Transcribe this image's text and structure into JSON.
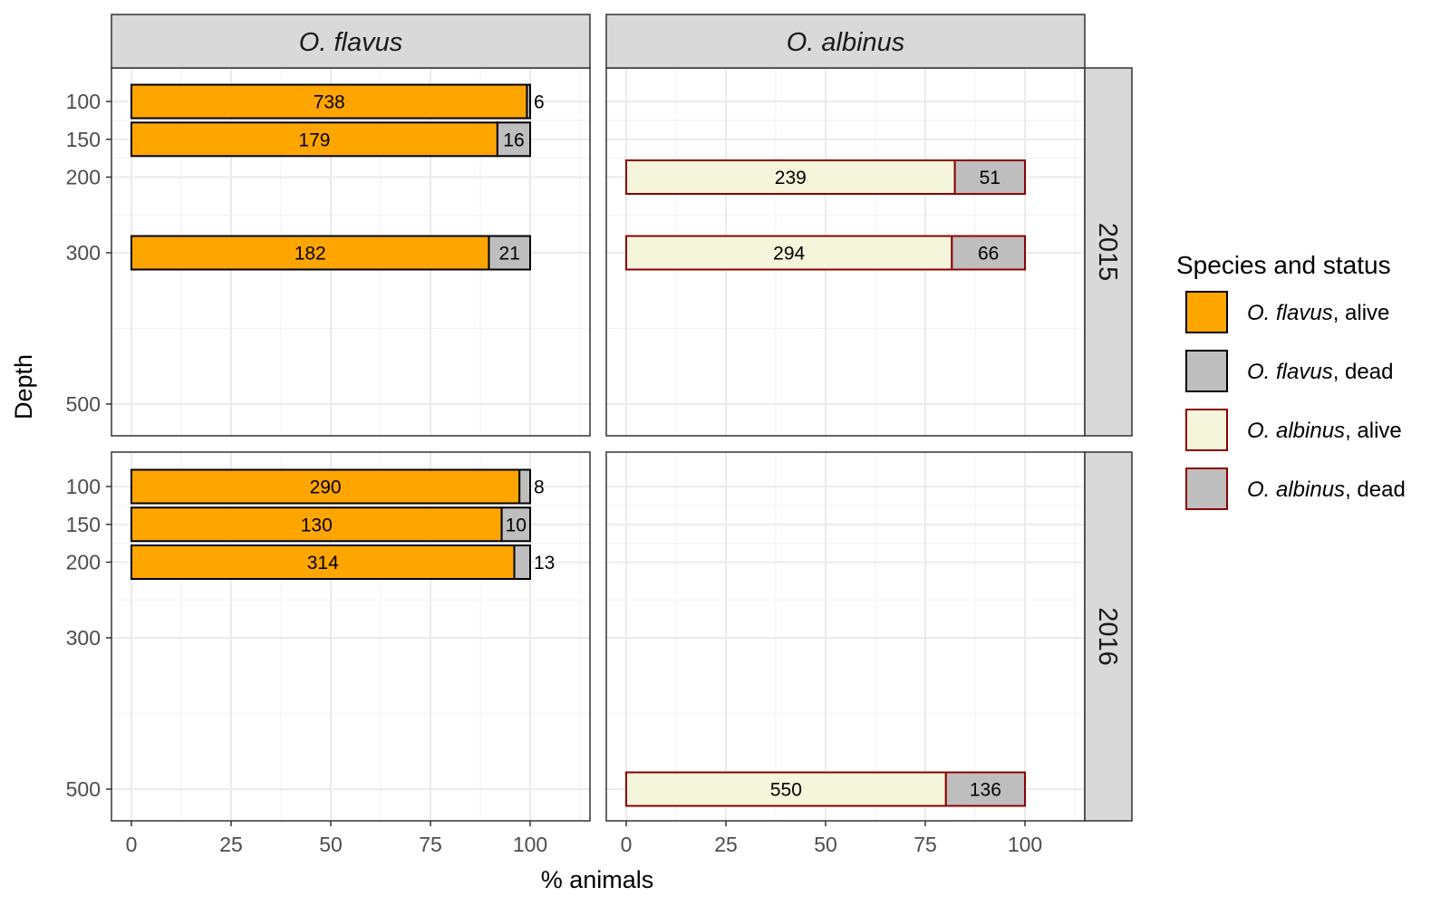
{
  "chart_data": {
    "type": "bar",
    "orientation": "horizontal",
    "stacked": true,
    "xlabel": "% animals",
    "ylabel": "Depth",
    "xlim": [
      -5,
      115
    ],
    "x_ticks": [
      0,
      25,
      50,
      75,
      100
    ],
    "y_ticks": [
      100,
      150,
      200,
      300,
      500
    ],
    "y_scale": "linear (depth), reversed, 100 at top",
    "grid": true,
    "legend": {
      "title": "Species and status",
      "placement": "right",
      "entries": [
        {
          "species": "O. flavus",
          "status": ", alive",
          "fill": "#FFA500",
          "stroke": "#000000"
        },
        {
          "species": "O. flavus",
          "status": ", dead",
          "fill": "#BEBEBE",
          "stroke": "#000000"
        },
        {
          "species": "O. albinus",
          "status": ", alive",
          "fill": "#F5F5DC",
          "stroke": "#8B0000"
        },
        {
          "species": "O. albinus",
          "status": ", dead",
          "fill": "#BEBEBE",
          "stroke": "#8B0000"
        }
      ]
    },
    "facet_columns": [
      "O. flavus",
      "O. albinus"
    ],
    "facet_rows": [
      "2015",
      "2016"
    ],
    "colors": {
      "flavus_alive": "#FFA500",
      "albinus_alive": "#F5F5DC",
      "dead": "#BEBEBE",
      "flavus_border": "#000000",
      "albinus_border": "#8B0000",
      "strip_bg": "#D9D9D9",
      "grid_major": "#EBEBEB",
      "grid_minor": "#F4F4F4"
    },
    "panels": [
      {
        "species": "O. flavus",
        "year": "2015",
        "bars": [
          {
            "depth": 100,
            "alive": 738,
            "dead": 6
          },
          {
            "depth": 150,
            "alive": 179,
            "dead": 16
          },
          {
            "depth": 300,
            "alive": 182,
            "dead": 21
          }
        ]
      },
      {
        "species": "O. albinus",
        "year": "2015",
        "bars": [
          {
            "depth": 200,
            "alive": 239,
            "dead": 51
          },
          {
            "depth": 300,
            "alive": 294,
            "dead": 66
          }
        ]
      },
      {
        "species": "O. flavus",
        "year": "2016",
        "bars": [
          {
            "depth": 100,
            "alive": 290,
            "dead": 8
          },
          {
            "depth": 150,
            "alive": 130,
            "dead": 10
          },
          {
            "depth": 200,
            "alive": 314,
            "dead": 13
          }
        ]
      },
      {
        "species": "O. albinus",
        "year": "2016",
        "bars": [
          {
            "depth": 500,
            "alive": 550,
            "dead": 136
          }
        ]
      }
    ]
  }
}
